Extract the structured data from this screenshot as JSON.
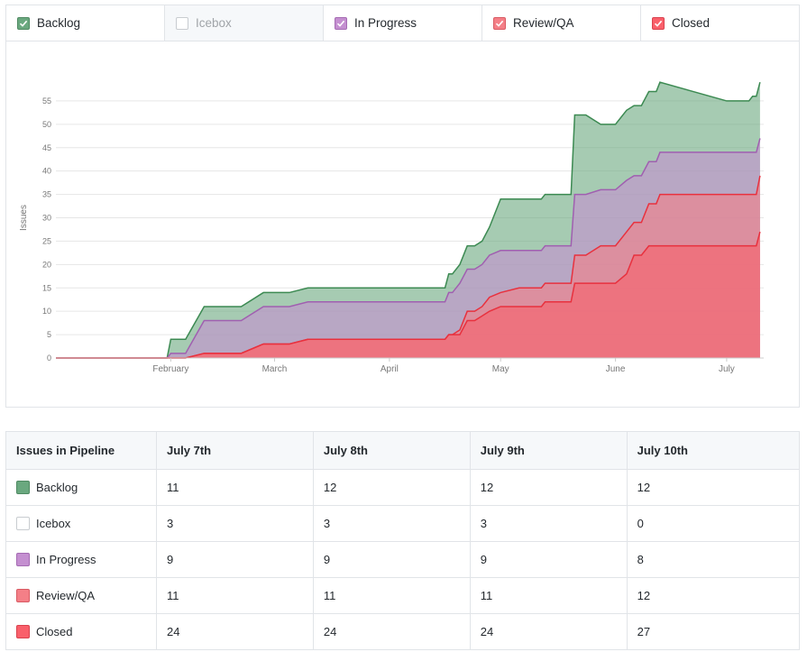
{
  "legend": [
    {
      "label": "Backlog",
      "checked": true,
      "color": "#6aa87f"
    },
    {
      "label": "Icebox",
      "checked": false,
      "color": "#ffffff"
    },
    {
      "label": "In Progress",
      "checked": true,
      "color": "#c48fd0"
    },
    {
      "label": "Review/QA",
      "checked": true,
      "color": "#f47f87"
    },
    {
      "label": "Closed",
      "checked": true,
      "color": "#f9606b"
    }
  ],
  "chart_data": {
    "type": "area",
    "ylabel": "Issues",
    "xlabel": "",
    "ylim": [
      0,
      60
    ],
    "yticks": [
      0,
      5,
      10,
      15,
      20,
      25,
      30,
      35,
      40,
      45,
      50,
      55
    ],
    "x_tick_labels": [
      "February",
      "March",
      "April",
      "May",
      "June",
      "July"
    ],
    "x_tick_days": [
      31,
      59,
      90,
      120,
      151,
      181
    ],
    "x_range_days": [
      0,
      191
    ],
    "stacked": true,
    "x_dates": [
      "Jan 1",
      "Jan 23",
      "Jan 31",
      "Feb 1",
      "Feb 5",
      "Feb 10",
      "Feb 16",
      "Feb 20",
      "Feb 26",
      "Mar 5",
      "Mar 10",
      "Mar 15",
      "Mar 20",
      "Mar 31",
      "Apr 10",
      "Apr 13",
      "Apr 16",
      "Apr 17",
      "Apr 18",
      "Apr 20",
      "Apr 22",
      "Apr 24",
      "Apr 26",
      "Apr 28",
      "May 1",
      "May 6",
      "May 10",
      "May 12",
      "May 13",
      "May 14",
      "May 16",
      "May 18",
      "May 20",
      "May 21",
      "May 24",
      "May 28",
      "Jun 1",
      "Jun 4",
      "Jun 6",
      "Jun 8",
      "Jun 10",
      "Jun 12",
      "Jun 13",
      "Jul 1",
      "Jul 7",
      "Jul 8",
      "Jul 9",
      "Jul 10"
    ],
    "series": [
      {
        "name": "Closed",
        "color": "#f9606b",
        "values": [
          0,
          0,
          0,
          0,
          0,
          1,
          1,
          1,
          3,
          3,
          4,
          4,
          4,
          4,
          4,
          4,
          4,
          5,
          5,
          5,
          8,
          8,
          9,
          10,
          11,
          11,
          11,
          11,
          12,
          12,
          12,
          12,
          12,
          16,
          16,
          16,
          16,
          18,
          22,
          22,
          24,
          24,
          24,
          24,
          24,
          24,
          24,
          27
        ]
      },
      {
        "name": "Review/QA",
        "color": "#f47f87",
        "values": [
          0,
          0,
          0,
          0,
          0,
          0,
          0,
          0,
          0,
          0,
          0,
          0,
          0,
          0,
          0,
          0,
          0,
          0,
          0,
          1,
          2,
          2,
          2,
          3,
          3,
          4,
          4,
          4,
          4,
          4,
          4,
          4,
          4,
          6,
          6,
          8,
          8,
          9,
          7,
          7,
          9,
          9,
          11,
          11,
          11,
          11,
          11,
          12
        ]
      },
      {
        "name": "In Progress",
        "color": "#c48fd0",
        "values": [
          0,
          0,
          0,
          1,
          1,
          7,
          7,
          7,
          8,
          8,
          8,
          8,
          8,
          8,
          8,
          8,
          8,
          9,
          9,
          10,
          9,
          9,
          9,
          9,
          9,
          8,
          8,
          8,
          8,
          8,
          8,
          8,
          8,
          13,
          13,
          12,
          12,
          11,
          10,
          10,
          9,
          9,
          9,
          9,
          9,
          9,
          9,
          8
        ]
      },
      {
        "name": "Backlog",
        "color": "#6aa87f",
        "values": [
          0,
          0,
          0,
          3,
          3,
          3,
          3,
          3,
          3,
          3,
          3,
          3,
          3,
          3,
          3,
          3,
          3,
          4,
          4,
          4,
          5,
          5,
          5,
          6,
          11,
          11,
          11,
          11,
          11,
          11,
          11,
          11,
          11,
          17,
          17,
          14,
          14,
          15,
          15,
          15,
          15,
          15,
          15,
          11,
          11,
          12,
          12,
          12
        ]
      }
    ]
  },
  "table": {
    "headers": [
      "Issues in Pipeline",
      "July 7th",
      "July 8th",
      "July 9th",
      "July 10th"
    ],
    "rows": [
      {
        "label": "Backlog",
        "color": "#6aa87f",
        "border": "#4f8a62",
        "values": [
          "11",
          "12",
          "12",
          "12"
        ]
      },
      {
        "label": "Icebox",
        "color": "#ffffff",
        "border": "#c8ccd0",
        "values": [
          "3",
          "3",
          "3",
          "0"
        ]
      },
      {
        "label": "In Progress",
        "color": "#c48fd0",
        "border": "#a56bb3",
        "values": [
          "9",
          "9",
          "9",
          "8"
        ]
      },
      {
        "label": "Review/QA",
        "color": "#f47f87",
        "border": "#d95a63",
        "values": [
          "11",
          "11",
          "11",
          "12"
        ]
      },
      {
        "label": "Closed",
        "color": "#f9606b",
        "border": "#d9424e",
        "values": [
          "24",
          "24",
          "24",
          "27"
        ]
      }
    ]
  }
}
